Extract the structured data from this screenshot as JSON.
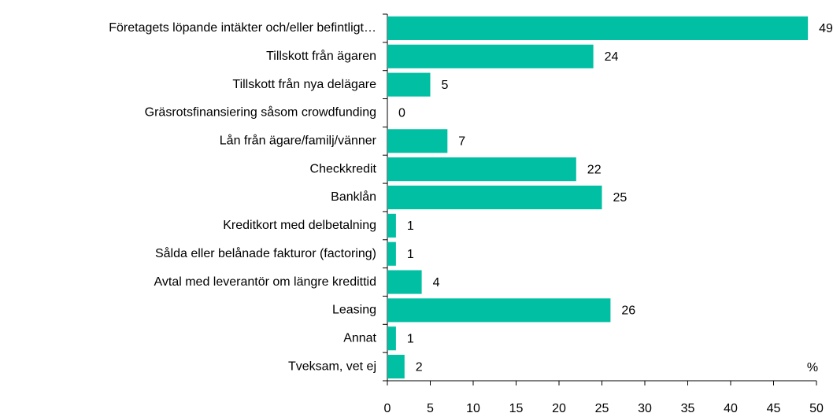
{
  "chart_data": {
    "type": "barh",
    "categories": [
      "Företagets löpande intäkter och/eller befintligt…",
      "Tillskott från ägaren",
      "Tillskott från nya delägare",
      "Gräsrotsfinansiering såsom crowdfunding",
      "Lån från ägare/familj/vänner",
      "Checkkredit",
      "Banklån",
      "Kreditkort med delbetalning",
      "Sålda eller belånade fakturor (factoring)",
      "Avtal med leverantör om längre kredittid",
      "Leasing",
      "Annat",
      "Tveksam, vet ej"
    ],
    "values": [
      49,
      24,
      5,
      0,
      7,
      22,
      25,
      1,
      1,
      4,
      26,
      1,
      2
    ],
    "color": "#00bfa3",
    "xlim": [
      0,
      50
    ],
    "xticks": [
      0,
      5,
      10,
      15,
      20,
      25,
      30,
      35,
      40,
      45,
      50
    ],
    "axis_label": "%",
    "grid": false
  }
}
